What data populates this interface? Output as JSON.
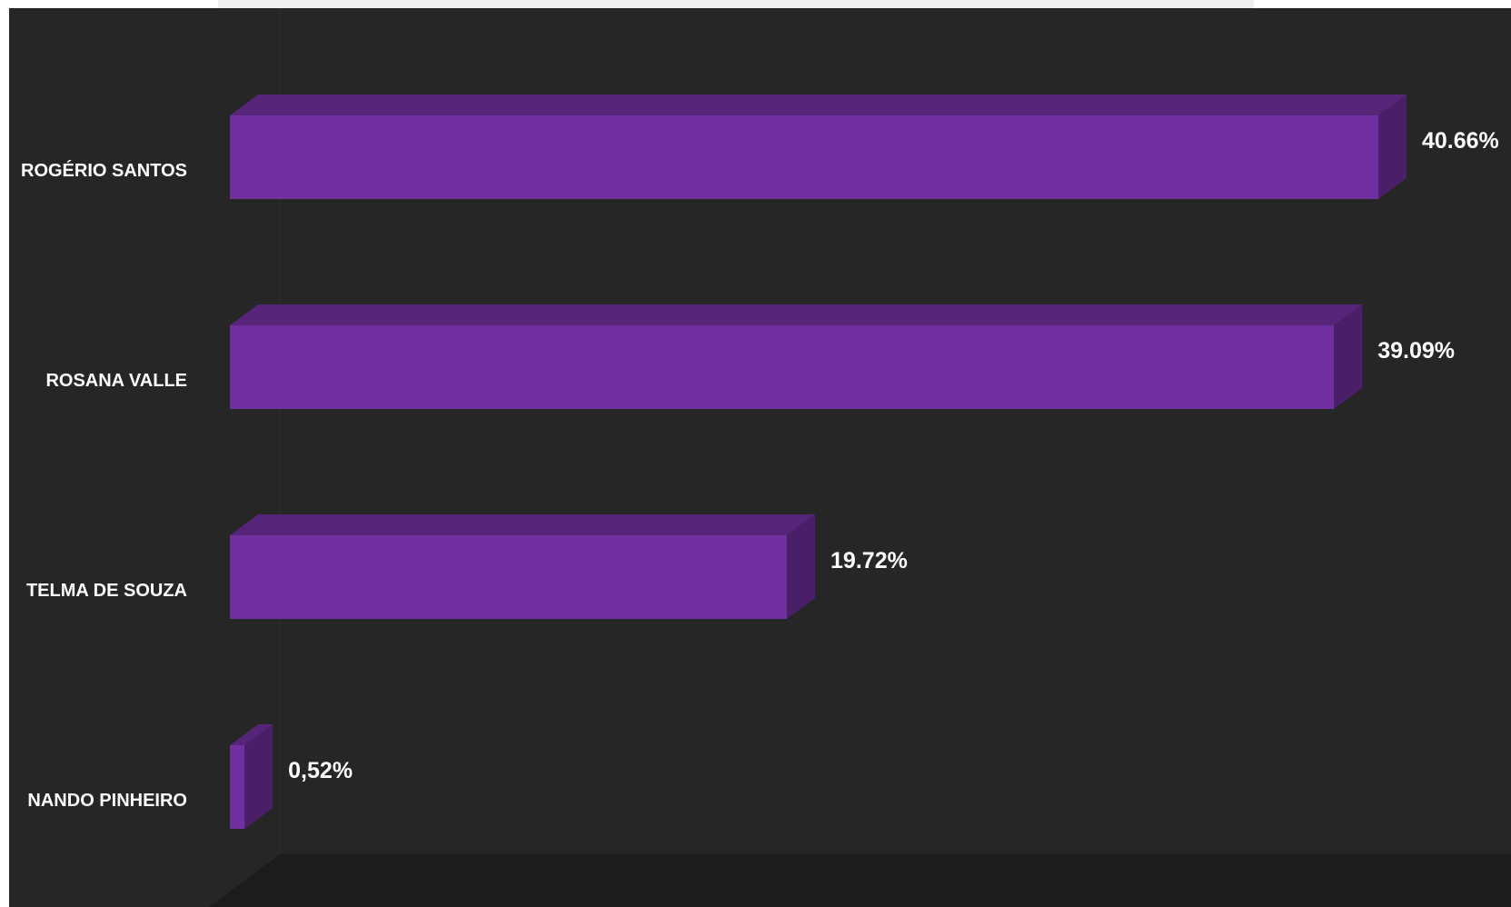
{
  "colors": {
    "background": "#262626",
    "floor": "#1c1c1c",
    "bar_front": "#7030a0",
    "bar_top": "#562478",
    "bar_side": "#4a1f68",
    "text": "#ffffff"
  },
  "chart_data": {
    "type": "bar",
    "orientation": "horizontal",
    "style": "3d",
    "categories": [
      "ROGÉRIO SANTOS",
      "ROSANA VALLE",
      "TELMA DE SOUZA",
      "NANDO PINHEIRO"
    ],
    "values": [
      40.66,
      39.09,
      19.72,
      0.52
    ],
    "value_labels": [
      "40.66%",
      "39.09%",
      "19.72%",
      "0,52%"
    ],
    "xlim": [
      0,
      42
    ],
    "grid": false,
    "legend": "none"
  }
}
